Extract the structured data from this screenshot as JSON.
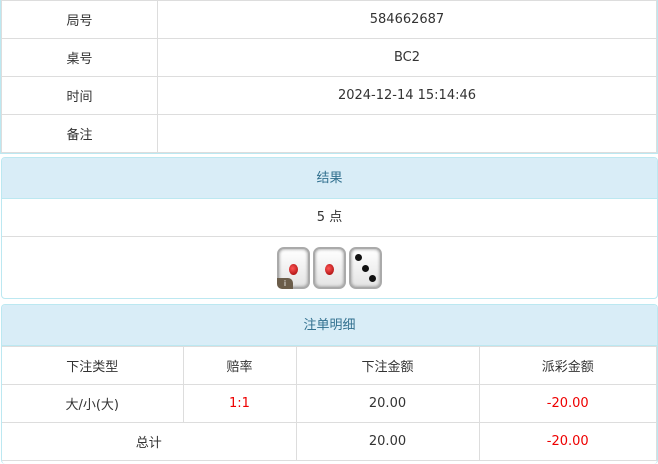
{
  "info": {
    "rows": [
      {
        "label": "局号",
        "value": "584662687"
      },
      {
        "label": "桌号",
        "value": "BC2"
      },
      {
        "label": "时间",
        "value": "2024-12-14 15:14:46"
      },
      {
        "label": "备注",
        "value": ""
      }
    ]
  },
  "result": {
    "title": "结果",
    "points": "5 点",
    "dice": [
      1,
      1,
      3
    ],
    "info_badge": "i"
  },
  "bets": {
    "title": "注单明细",
    "headers": [
      "下注类型",
      "赔率",
      "下注金额",
      "派彩金额"
    ],
    "rows": [
      {
        "type": "大/小(大)",
        "odds": "1:1",
        "amount": "20.00",
        "payout": "-20.00"
      }
    ],
    "total": {
      "label": "总计",
      "amount": "20.00",
      "payout": "-20.00"
    }
  },
  "colors": {
    "header_bg": "#d9edf7",
    "header_text": "#31708f",
    "negative": "#e00000"
  }
}
